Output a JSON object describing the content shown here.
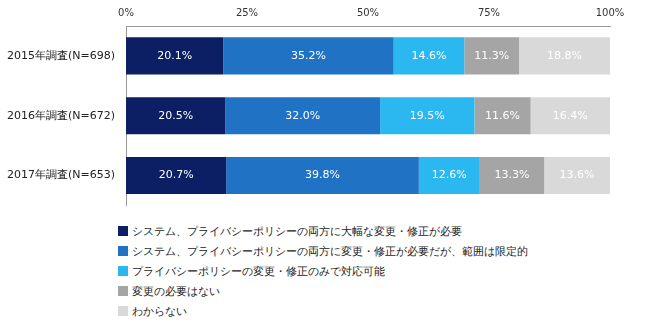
{
  "chart_data": {
    "type": "bar",
    "orientation": "horizontal",
    "stacked": true,
    "data_labels": true,
    "legend": "bottom",
    "grid": false,
    "categories": [
      "2015年調査(N=698)",
      "2016年調査(N=672)",
      "2017年調査(N=653)"
    ],
    "xlim": [
      0,
      100
    ],
    "xticks": [
      {
        "value": 0,
        "label": "0%"
      },
      {
        "value": 25,
        "label": "25%"
      },
      {
        "value": 50,
        "label": "50%"
      },
      {
        "value": 75,
        "label": "75%"
      },
      {
        "value": 100,
        "label": "100%"
      }
    ],
    "series": [
      {
        "name": "システム、プライバシーポリシーの両方に大幅な変更・修正が必要",
        "color": "#0c1f64",
        "values": [
          20.1,
          20.5,
          20.7
        ],
        "value_labels": [
          "20.1%",
          "20.5%",
          "20.7%"
        ]
      },
      {
        "name": "システム、プライバシーポリシーの両方に変更・修正が必要だが、範囲は限定的",
        "color": "#1f72c4",
        "values": [
          35.2,
          32.0,
          39.8
        ],
        "value_labels": [
          "35.2%",
          "32.0%",
          "39.8%"
        ]
      },
      {
        "name": "プライバシーポリシーの変更・修正のみで対応可能",
        "color": "#2bb7ef",
        "values": [
          14.6,
          19.5,
          12.6
        ],
        "value_labels": [
          "14.6%",
          "19.5%",
          "12.6%"
        ]
      },
      {
        "name": "変更の必要はない",
        "color": "#a5a5a5",
        "values": [
          11.3,
          11.6,
          13.3
        ],
        "value_labels": [
          "11.3%",
          "11.6%",
          "13.3%"
        ]
      },
      {
        "name": "わからない",
        "color": "#d9d9d9",
        "values": [
          18.8,
          16.4,
          13.6
        ],
        "value_labels": [
          "18.8%",
          "16.4%",
          "13.6%"
        ]
      }
    ]
  }
}
